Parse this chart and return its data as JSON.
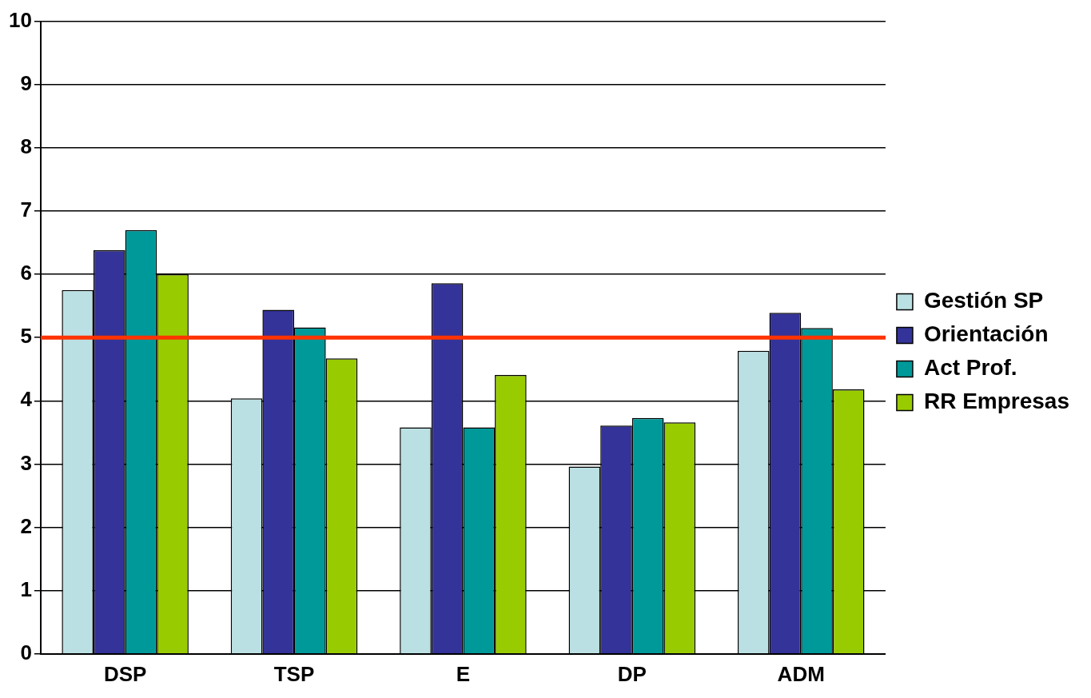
{
  "chart_data": {
    "type": "bar",
    "categories": [
      "DSP",
      "TSP",
      "E",
      "DP",
      "ADM"
    ],
    "series": [
      {
        "name": "Gestión SP",
        "color": "#bbe0e3",
        "values": [
          5.75,
          4.04,
          3.58,
          2.96,
          4.79
        ]
      },
      {
        "name": "Orientación",
        "color": "#333399",
        "values": [
          6.38,
          5.44,
          5.86,
          3.61,
          5.39
        ]
      },
      {
        "name": "Act Prof.",
        "color": "#009999",
        "values": [
          6.7,
          5.16,
          3.58,
          3.73,
          5.15
        ]
      },
      {
        "name": "RR Empresas",
        "color": "#99cc00",
        "values": [
          6.0,
          4.67,
          4.41,
          3.66,
          4.18
        ]
      }
    ],
    "ylim": [
      0,
      10
    ],
    "yticks": [
      0,
      1,
      2,
      3,
      4,
      5,
      6,
      7,
      8,
      9,
      10
    ],
    "grid": "y",
    "legend": "right",
    "ref_lines": [
      {
        "axis": "y",
        "value": 5,
        "color": "#ff3300"
      }
    ]
  }
}
